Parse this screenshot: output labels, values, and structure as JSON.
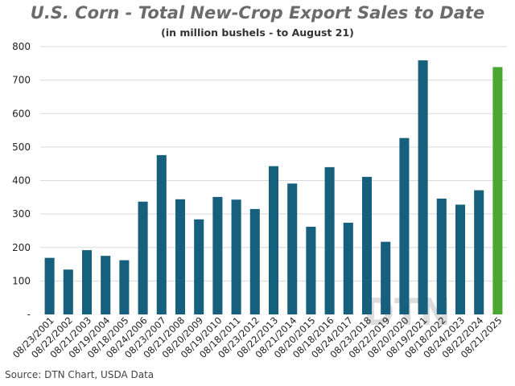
{
  "title": "U.S. Corn - Total New-Crop Export Sales to Date",
  "subtitle": "(in million bushels - to August 21)",
  "source": "Source: DTN Chart, USDA Data",
  "watermark": "DTN",
  "colors": {
    "bar": "#17607d",
    "highlight": "#4aa832",
    "grid": "#d9d9d9",
    "title": "#6b6b6b"
  },
  "chart_data": {
    "type": "bar",
    "categories": [
      "08/23/2001",
      "08/22/2002",
      "08/21/2003",
      "08/19/2004",
      "08/18/2005",
      "08/24/2006",
      "08/23/2007",
      "08/21/2008",
      "08/20/2009",
      "08/19/2010",
      "08/18/2011",
      "08/23/2012",
      "08/22/2013",
      "08/21/2014",
      "08/20/2015",
      "08/18/2016",
      "08/24/2017",
      "08/23/2018",
      "08/22/2019",
      "08/20/2020",
      "08/19/2021",
      "08/18/2022",
      "08/24/2023",
      "08/22/2024",
      "08/21/2025"
    ],
    "values": [
      169,
      134,
      192,
      175,
      162,
      337,
      476,
      344,
      284,
      351,
      343,
      315,
      443,
      391,
      262,
      440,
      274,
      411,
      217,
      527,
      759,
      346,
      328,
      371,
      739
    ],
    "highlight_index": 24,
    "ylim": [
      0,
      800
    ],
    "yticks": [
      0,
      100,
      200,
      300,
      400,
      500,
      600,
      700,
      800
    ],
    "ytick_labels": [
      "-",
      "100",
      "200",
      "300",
      "400",
      "500",
      "600",
      "700",
      "800"
    ],
    "title": "U.S. Corn - Total New-Crop Export Sales to Date",
    "xlabel": "",
    "ylabel": "",
    "grid": true,
    "legend": "none"
  }
}
